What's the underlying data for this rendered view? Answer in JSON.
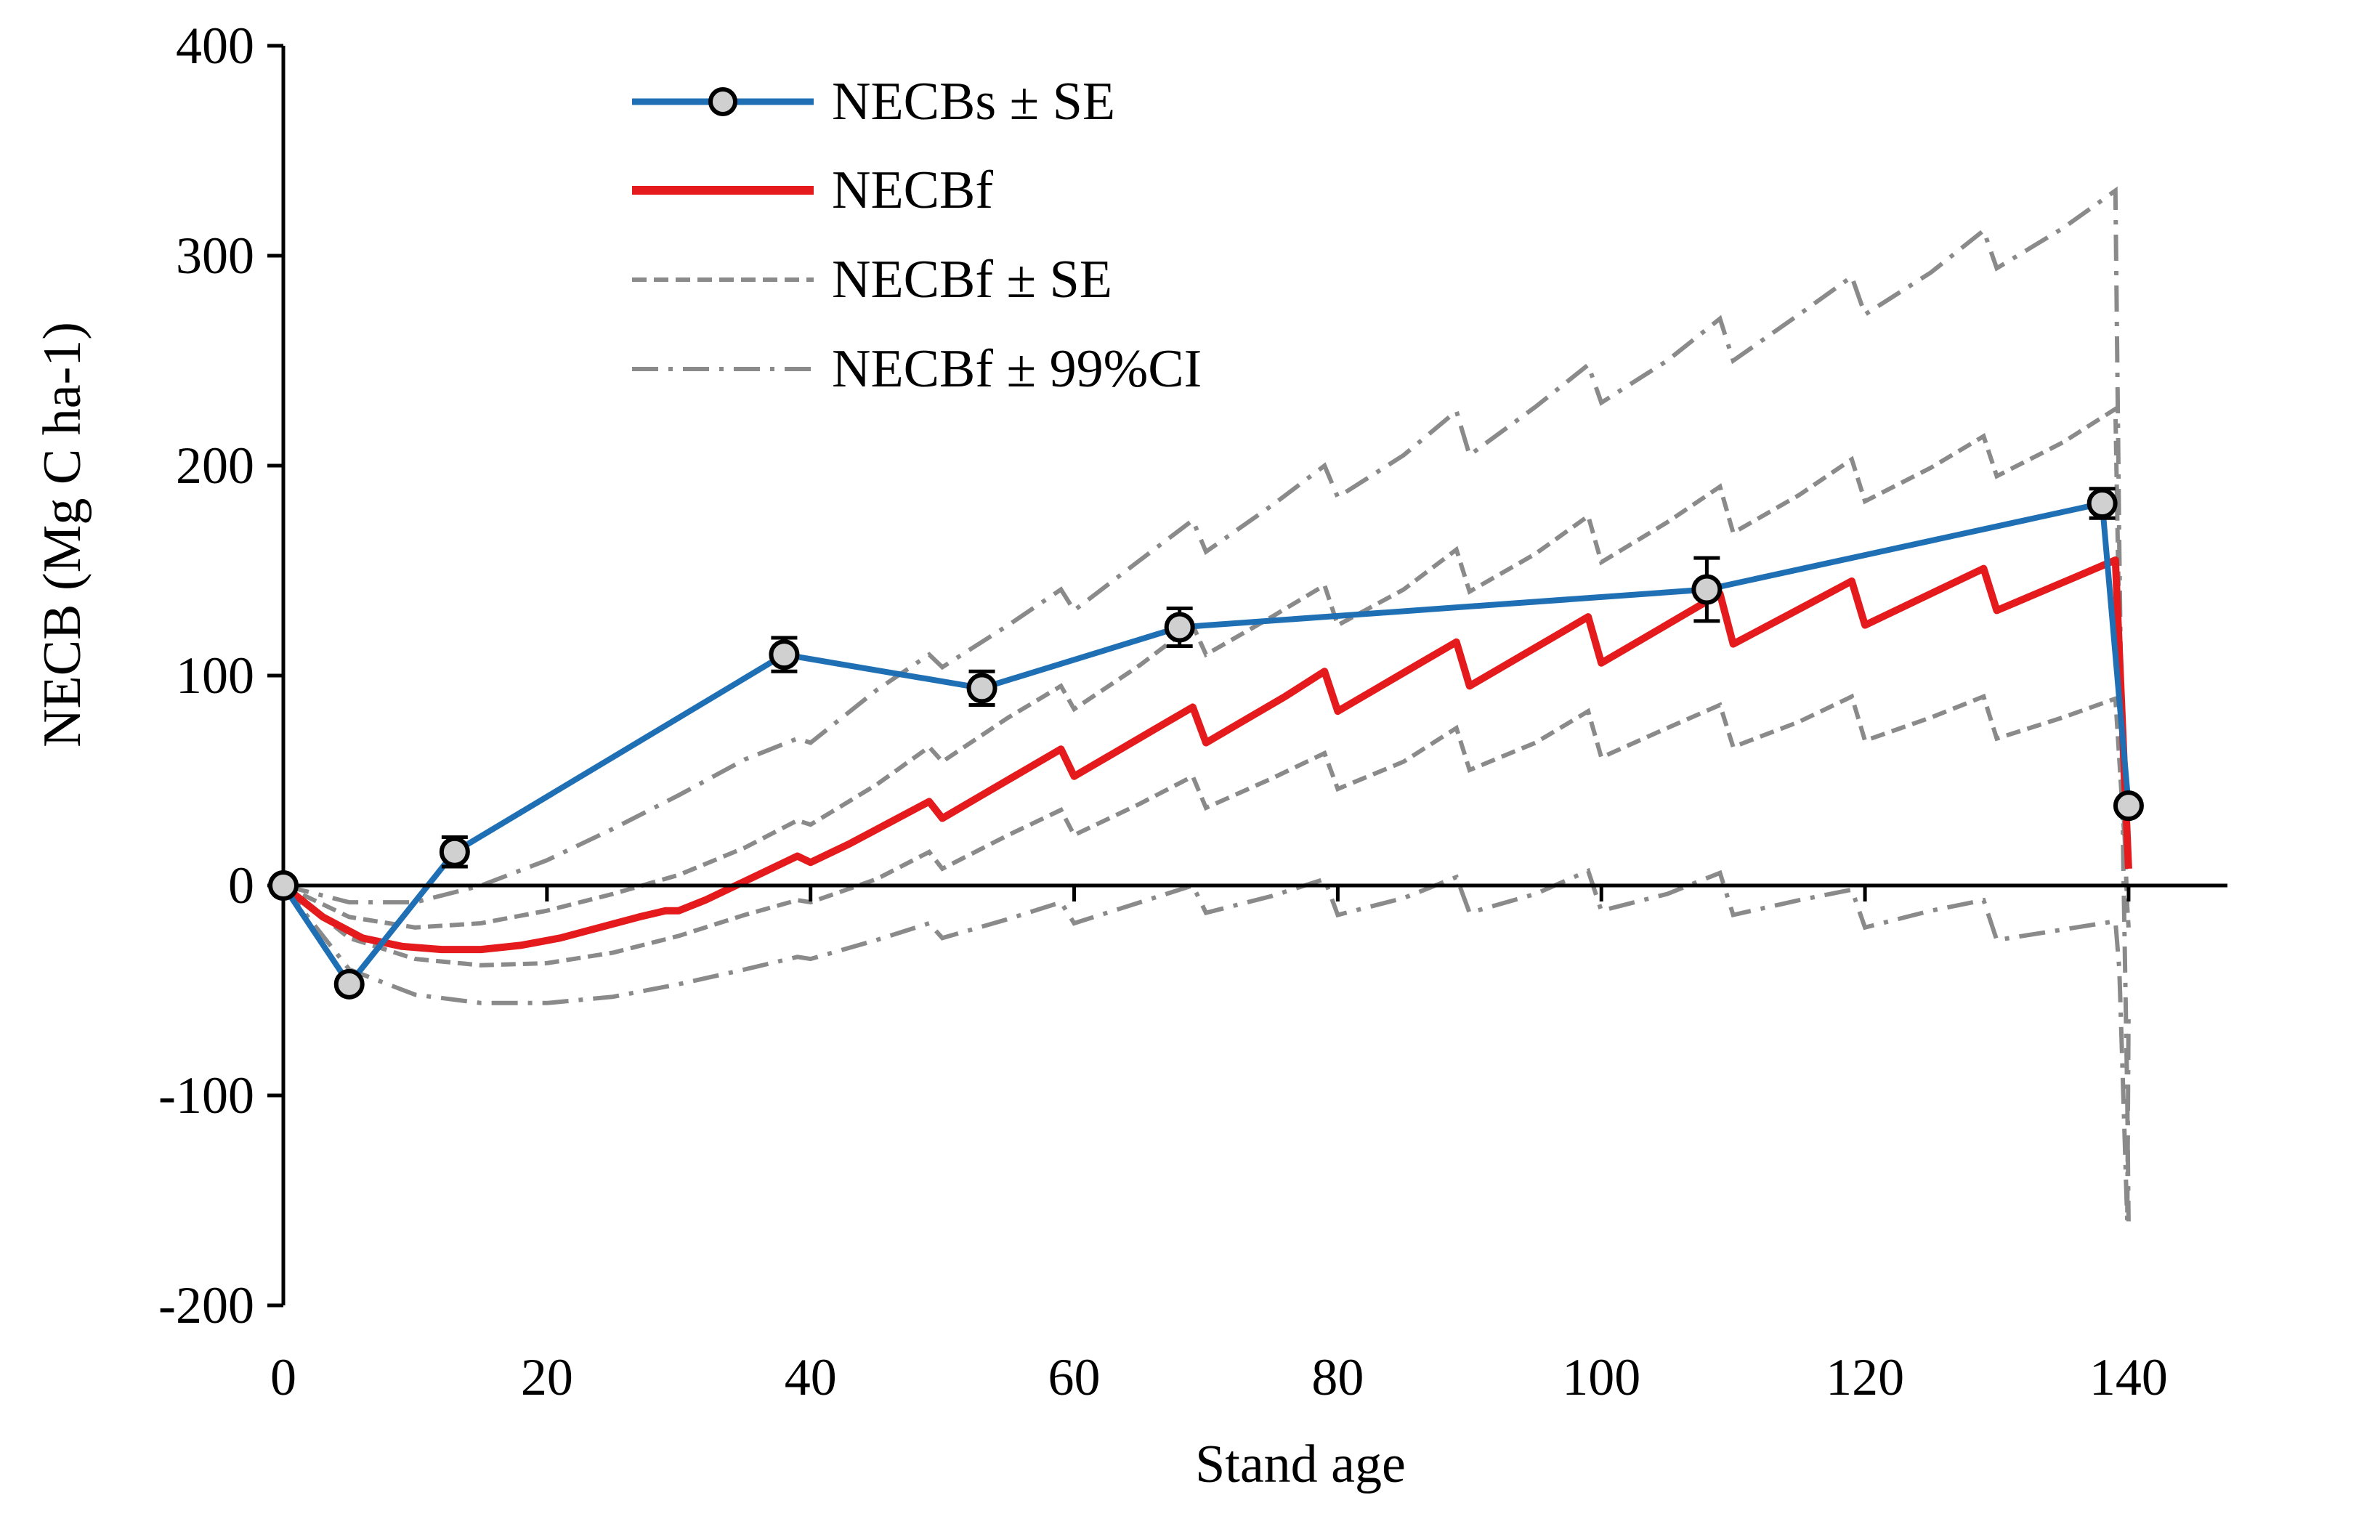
{
  "chart_data": {
    "type": "line",
    "xlabel": "Stand age",
    "ylabel": "NECB (Mg C ha-1)",
    "xlim": [
      0,
      150
    ],
    "ylim": [
      -200,
      400
    ],
    "x_ticks": [
      "0",
      "20",
      "40",
      "60",
      "80",
      "100",
      "120",
      "140"
    ],
    "y_ticks": [
      "-200",
      "-100",
      "0",
      "100",
      "200",
      "300",
      "400"
    ],
    "legend_position": "top-left",
    "legend": [
      {
        "label": "NECBs ± SE",
        "style": "blue solid line with gray circle markers"
      },
      {
        "label": "NECBf",
        "style": "red solid line"
      },
      {
        "label": "NECBf ± SE",
        "style": "gray dashed line"
      },
      {
        "label": "NECBf ± 99%CI",
        "style": "gray dash-dot line"
      }
    ],
    "colors": {
      "necbs": "#1f6fb5",
      "necbf": "#e41a1c",
      "gray": "#8a8a8a",
      "marker_fill": "#d0d0d0"
    },
    "series": [
      {
        "name": "NECBs ± SE",
        "points": [
          {
            "x": 0,
            "y": 0,
            "se": 0
          },
          {
            "x": 5,
            "y": -47,
            "se": 3
          },
          {
            "x": 13,
            "y": 16,
            "se": 7
          },
          {
            "x": 38,
            "y": 110,
            "se": 8
          },
          {
            "x": 53,
            "y": 94,
            "se": 8
          },
          {
            "x": 68,
            "y": 123,
            "se": 9
          },
          {
            "x": 108,
            "y": 141,
            "se": 15
          },
          {
            "x": 138,
            "y": 182,
            "se": 7
          },
          {
            "x": 140,
            "y": 38,
            "se": 2
          }
        ]
      },
      {
        "name": "NECBf",
        "x": [
          0,
          3,
          6,
          9,
          12,
          15,
          18,
          21,
          24,
          27,
          29,
          30,
          32,
          35,
          38,
          39,
          40,
          43,
          46,
          49,
          50,
          53,
          56,
          59,
          60,
          63,
          66,
          69,
          70,
          73,
          76,
          79,
          80,
          83,
          86,
          89,
          90,
          93,
          96,
          99,
          100,
          103,
          106,
          109,
          110,
          113,
          116,
          119,
          120,
          123,
          126,
          129,
          130,
          133,
          136,
          139,
          140
        ],
        "y": [
          0,
          -15,
          -25,
          -29,
          -30.5,
          -30.5,
          -28.5,
          -25,
          -20,
          -15,
          -12,
          -12,
          -7,
          2,
          11,
          14,
          11,
          20,
          30,
          40,
          32,
          43,
          54,
          65,
          52,
          63,
          74,
          85,
          68,
          79,
          90,
          102,
          83,
          94,
          105,
          116,
          95,
          106,
          117,
          128,
          106,
          117,
          128,
          139,
          115,
          125,
          135,
          145,
          124,
          133,
          142,
          151,
          131,
          139,
          147,
          155,
          8
        ]
      },
      {
        "name": "NECBf + SE",
        "x": [
          0,
          5,
          10,
          15,
          20,
          25,
          30,
          35,
          39,
          40,
          45,
          49,
          50,
          55,
          59,
          60,
          65,
          69,
          70,
          75,
          79,
          80,
          85,
          89,
          90,
          95,
          99,
          100,
          105,
          109,
          110,
          115,
          119,
          120,
          125,
          129,
          130,
          135,
          139
        ],
        "y": [
          0,
          -15,
          -20,
          -18,
          -12,
          -4,
          5,
          18,
          31,
          29,
          48,
          66,
          59,
          80,
          95,
          84,
          105,
          124,
          110,
          128,
          143,
          124,
          141,
          160,
          140,
          158,
          176,
          154,
          173,
          190,
          168,
          186,
          203,
          183,
          199,
          214,
          195,
          211,
          227
        ]
      },
      {
        "name": "NECBf - SE",
        "x": [
          0,
          5,
          10,
          15,
          20,
          25,
          30,
          35,
          39,
          40,
          45,
          49,
          50,
          55,
          59,
          60,
          65,
          69,
          70,
          75,
          79,
          80,
          85,
          89,
          90,
          95,
          99,
          100,
          105,
          109,
          110,
          115,
          119,
          120,
          125,
          129,
          130,
          135,
          139
        ],
        "y": [
          0,
          -25,
          -35,
          -38,
          -37,
          -32,
          -24,
          -14,
          -7,
          -8,
          3,
          16,
          8,
          24,
          36,
          24,
          39,
          52,
          37,
          51,
          63,
          46,
          59,
          75,
          55,
          68,
          83,
          61,
          75,
          86,
          66,
          78,
          90,
          69,
          80,
          90,
          70,
          80,
          89
        ]
      },
      {
        "name": "NECBf + 99%CI",
        "x": [
          0,
          5,
          10,
          15,
          20,
          25,
          30,
          35,
          39,
          40,
          45,
          49,
          50,
          55,
          59,
          60,
          65,
          69,
          70,
          75,
          79,
          80,
          85,
          89,
          90,
          95,
          99,
          100,
          105,
          109,
          110,
          115,
          119,
          120,
          125,
          129,
          130,
          135,
          139
        ],
        "y": [
          0,
          -8,
          -8,
          0,
          12,
          27,
          43,
          60,
          70,
          68,
          93,
          110,
          104,
          124,
          141,
          131,
          155,
          174,
          159,
          181,
          200,
          185,
          205,
          226,
          205,
          228,
          248,
          230,
          250,
          270,
          250,
          272,
          290,
          272,
          292,
          312,
          294,
          313,
          331
        ]
      },
      {
        "name": "NECBf - 99%CI",
        "x": [
          0,
          5,
          10,
          15,
          20,
          25,
          30,
          35,
          39,
          40,
          45,
          49,
          50,
          55,
          59,
          60,
          65,
          69,
          70,
          75,
          79,
          80,
          85,
          89,
          90,
          95,
          99,
          100,
          105,
          109,
          110,
          115,
          119,
          120,
          125,
          129,
          130,
          135,
          139
        ],
        "y": [
          0,
          -40,
          -52,
          -56,
          -56,
          -53,
          -47,
          -40,
          -34,
          -35,
          -26,
          -18,
          -25,
          -16,
          -8,
          -18,
          -8,
          0,
          -13,
          -5,
          3,
          -14,
          -6,
          4,
          -13,
          -4,
          7,
          -12,
          -4,
          6,
          -14,
          -7,
          -2,
          -20,
          -12,
          -7,
          -26,
          -21,
          -17
        ]
      },
      {
        "name": "NECBf drop at 140",
        "x": [
          139,
          139.3,
          139.6,
          139.9,
          140
        ],
        "y_upper_ci": [
          331,
          160,
          10,
          -100,
          -160
        ],
        "y_lower_ci": [
          -17,
          -40,
          -100,
          -160,
          -60
        ],
        "y_upper_se": [
          227,
          120,
          40,
          -10,
          -20
        ],
        "y_lower_se": [
          89,
          60,
          30,
          10,
          15
        ]
      }
    ]
  }
}
